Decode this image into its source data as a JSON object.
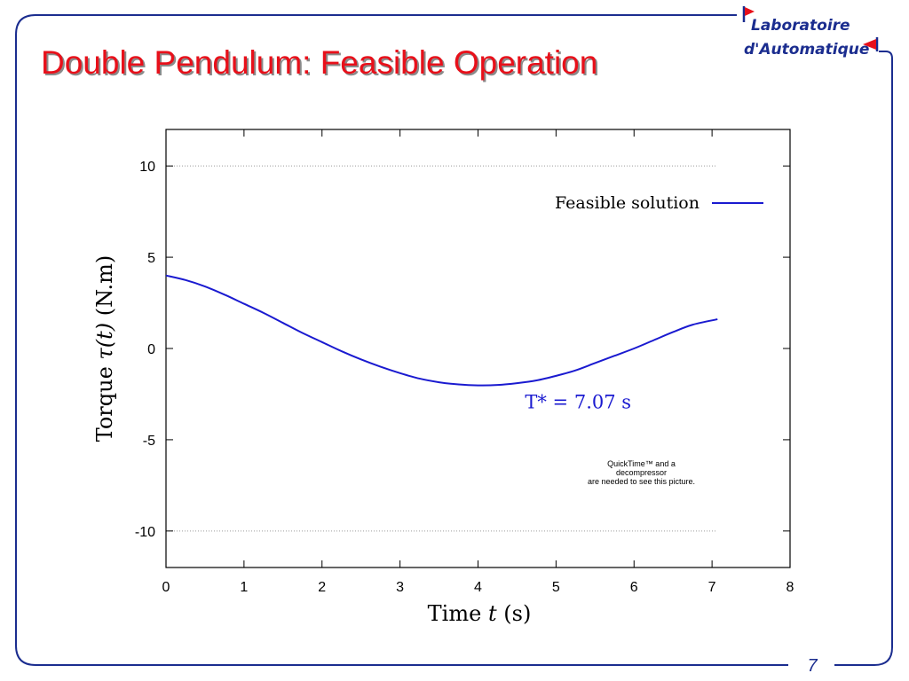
{
  "slide": {
    "title": "Double Pendulum: Feasible Operation",
    "page_number": "7",
    "logo": {
      "line1": "Laboratoire",
      "line2": "d'Automatique",
      "accent_color": "#e8101a",
      "text_color": "#1b2d8f"
    },
    "frame_color": "#1b2d8f",
    "title_color": "#e8101a",
    "placeholder_lines": [
      "QuickTime™ and a",
      "decompressor",
      "are needed to see this picture."
    ]
  },
  "chart_data": {
    "type": "line",
    "xlabel_main": "Time",
    "xlabel_var": "t",
    "xlabel_unit": "(s)",
    "ylabel_main": "Torque",
    "ylabel_var": "τ(t)",
    "ylabel_unit": "(N.m)",
    "xlim": [
      0,
      8
    ],
    "ylim": [
      -12,
      12
    ],
    "x_ticks": [
      0,
      1,
      2,
      3,
      4,
      5,
      6,
      7,
      8
    ],
    "x_tick_labels": [
      "0",
      "1",
      "2",
      "3",
      "4",
      "5",
      "6",
      "7",
      "8"
    ],
    "y_ticks": [
      -10,
      -5,
      0,
      5,
      10
    ],
    "y_tick_labels": [
      "-10",
      "-5",
      "0",
      "5",
      "10"
    ],
    "grid": "horizontal dotted at ±10",
    "legend": {
      "label": "Feasible solution",
      "placement": "top-right"
    },
    "annotation": {
      "text": "T* = 7.07 s",
      "x": 5.0,
      "y": -2.9
    },
    "series": [
      {
        "name": "Feasible solution",
        "color": "#1a1ad0",
        "x": [
          0,
          0.25,
          0.5,
          0.75,
          1.0,
          1.25,
          1.5,
          1.75,
          2.0,
          2.25,
          2.5,
          2.75,
          3.0,
          3.25,
          3.5,
          3.75,
          4.0,
          4.25,
          4.5,
          4.75,
          5.0,
          5.25,
          5.5,
          5.75,
          6.0,
          6.25,
          6.5,
          6.75,
          7.07
        ],
        "y": [
          4.0,
          3.75,
          3.4,
          2.95,
          2.45,
          1.95,
          1.4,
          0.85,
          0.35,
          -0.15,
          -0.6,
          -1.0,
          -1.35,
          -1.65,
          -1.85,
          -1.97,
          -2.02,
          -2.0,
          -1.9,
          -1.75,
          -1.5,
          -1.2,
          -0.8,
          -0.4,
          0.0,
          0.45,
          0.9,
          1.3,
          1.6
        ]
      }
    ]
  }
}
